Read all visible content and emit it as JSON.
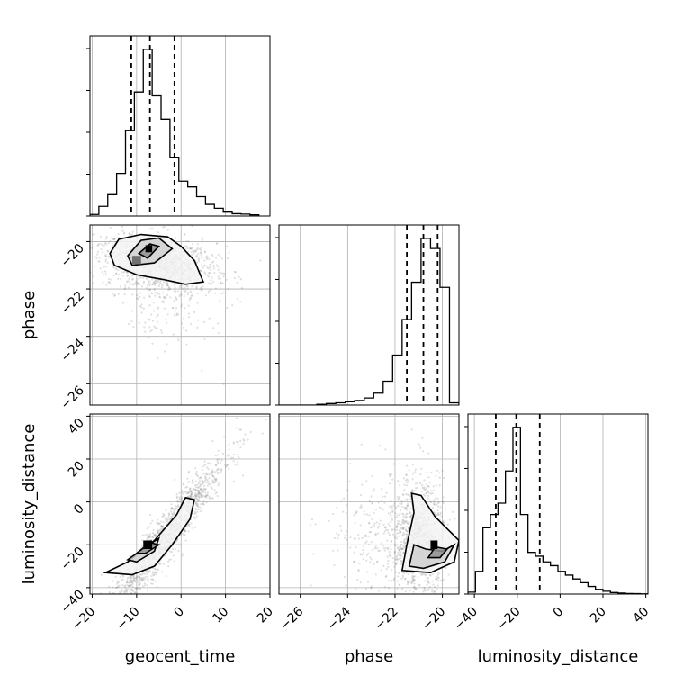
{
  "chart_data": {
    "type": "corner",
    "parameters": [
      "geocent_time",
      "phase",
      "luminosity_distance"
    ],
    "axis_labels": {
      "geocent_time": "geocent_time",
      "phase": "phase",
      "luminosity_distance": "luminosity_distance"
    },
    "ranges": {
      "geocent_time": [
        -20.5,
        20
      ],
      "phase": [
        -26.9,
        -19.3
      ],
      "luminosity_distance": [
        -43,
        41
      ]
    },
    "ticks": {
      "geocent_time": [
        -20,
        -10,
        0,
        10,
        20
      ],
      "phase": [
        -26,
        -24,
        -22,
        -20
      ],
      "luminosity_distance": [
        -40,
        -20,
        0,
        20,
        40
      ]
    },
    "tick_labels": {
      "geocent_time": [
        "−20",
        "−10",
        "0",
        "10",
        "20"
      ],
      "phase": [
        "−26",
        "−24",
        "−22",
        "−20"
      ],
      "luminosity_distance": [
        "−40",
        "−20",
        "0",
        "20",
        "40"
      ]
    },
    "quantile_lines": {
      "geocent_time": [
        -11.2,
        -7.0,
        -1.5
      ],
      "phase": [
        -21.5,
        -20.8,
        -20.2
      ],
      "luminosity_distance": [
        -30,
        -20.5,
        -9.5
      ]
    },
    "histograms": {
      "geocent_time": {
        "edges": [
          -20.5,
          -18.5,
          -16.5,
          -14.5,
          -12.5,
          -10.5,
          -8.5,
          -6.5,
          -4.5,
          -2.5,
          -0.5,
          1.5,
          3.5,
          5.5,
          7.5,
          9.5,
          11.5,
          13.5,
          15.5,
          17.5
        ],
        "counts": [
          0.8,
          5,
          11,
          22,
          44,
          64,
          86,
          62,
          50,
          30,
          18,
          15,
          10,
          6,
          4,
          2,
          1.2,
          1,
          0.6
        ]
      },
      "phase": {
        "edges": [
          -26.9,
          -26.5,
          -26.1,
          -25.7,
          -25.3,
          -24.9,
          -24.5,
          -24.1,
          -23.7,
          -23.3,
          -22.9,
          -22.5,
          -22.1,
          -21.7,
          -21.3,
          -20.9,
          -20.5,
          -20.1,
          -19.7,
          -19.3
        ],
        "counts": [
          0,
          0,
          0,
          0,
          0.3,
          0.6,
          0.9,
          1.3,
          1.8,
          2.8,
          4.7,
          9.4,
          19.7,
          33.7,
          48.4,
          65.7,
          61.7,
          46.4,
          0.9
        ]
      },
      "luminosity_distance": {
        "edges": [
          -43,
          -39.5,
          -36,
          -32.5,
          -29,
          -25.5,
          -22,
          -18.5,
          -15,
          -11.5,
          -8,
          -4.5,
          -1,
          2.5,
          6,
          9.5,
          13,
          16.5,
          20,
          23.5,
          27,
          30.5,
          34,
          37.5,
          41
        ],
        "counts": [
          1,
          12,
          35,
          42,
          48,
          65,
          88,
          42,
          22,
          20,
          17,
          15,
          12,
          10,
          8,
          6,
          4,
          2.5,
          1.5,
          0.8,
          0.5,
          0.3,
          0.2,
          0.1
        ]
      }
    },
    "scatter_color": "#707070",
    "contour_color": "#000000",
    "grid": true
  }
}
